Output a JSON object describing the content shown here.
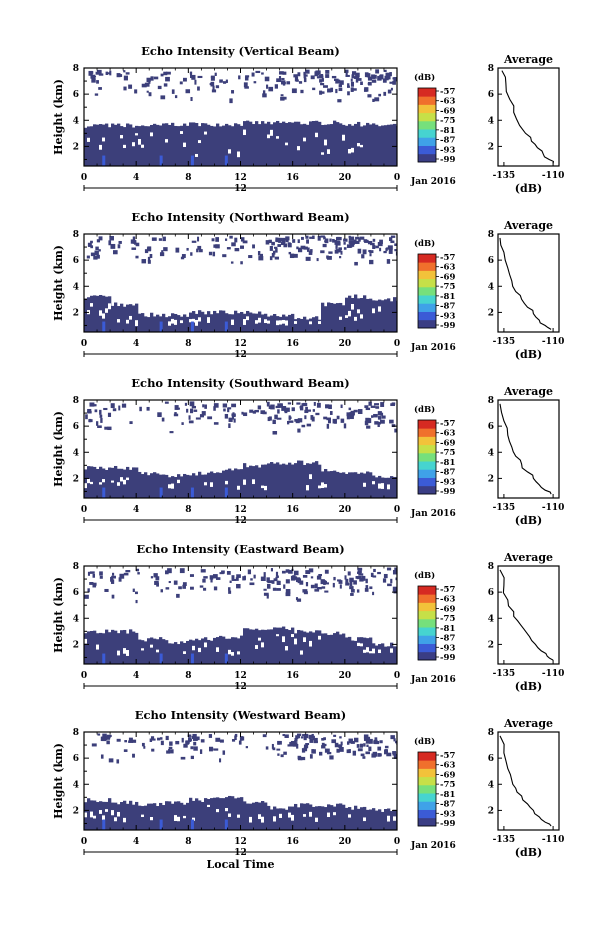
{
  "chart_data": [
    {
      "type": "heatmap",
      "title": "Echo Intensity (Vertical Beam)",
      "ylabel": "Height (km)",
      "y_ticks": [
        "2",
        "4",
        "6",
        "8"
      ],
      "x_ticks": [
        "0",
        "4",
        "8",
        "12",
        "16",
        "20",
        "0"
      ],
      "date_label": "12",
      "month_label": "Jan 2016",
      "ylim": [
        0.5,
        8.0
      ],
      "xlim": [
        0,
        24
      ],
      "lower_echo_top_km": [
        3.6,
        3.6,
        3.6,
        3.7,
        3.7,
        3.7,
        3.8,
        3.8,
        3.8,
        3.8,
        3.7,
        3.6
      ],
      "upper_echo_band_km": [
        5.6,
        7.9
      ],
      "colorbar": {
        "unit_label": "(dB)",
        "ticks": [
          "-57",
          "-63",
          "-69",
          "-75",
          "-81",
          "-87",
          "-93",
          "-99"
        ]
      },
      "average_profile": {
        "title": "Average",
        "xlabel": "(dB)",
        "x_ticks": [
          "-135",
          "-110"
        ],
        "y_ticks": [
          "2",
          "4",
          "6",
          "8"
        ],
        "xlim": [
          -138,
          -107
        ],
        "ylim": [
          0.5,
          8.0
        ],
        "x": [
          -136,
          -134,
          -132,
          -130,
          -127,
          -124,
          -121,
          -118,
          -115,
          -112,
          -110
        ],
        "y": [
          7.8,
          6.8,
          5.6,
          4.6,
          3.6,
          3.0,
          2.4,
          1.9,
          1.4,
          1.0,
          0.7
        ]
      }
    },
    {
      "type": "heatmap",
      "title": "Echo Intensity (Northward Beam)",
      "ylabel": "Height (km)",
      "y_ticks": [
        "2",
        "4",
        "6",
        "8"
      ],
      "x_ticks": [
        "0",
        "4",
        "8",
        "12",
        "16",
        "20",
        "0"
      ],
      "date_label": "12",
      "month_label": "Jan 2016",
      "ylim": [
        0.5,
        8.0
      ],
      "xlim": [
        0,
        24
      ],
      "lower_echo_top_km": [
        3.2,
        2.6,
        1.8,
        1.8,
        2.0,
        2.0,
        2.0,
        1.8,
        1.6,
        2.6,
        3.2,
        3.0
      ],
      "upper_echo_band_km": [
        5.8,
        7.9
      ],
      "colorbar": {
        "unit_label": "(dB)",
        "ticks": [
          "-57",
          "-63",
          "-69",
          "-75",
          "-81",
          "-87",
          "-93",
          "-99"
        ]
      },
      "average_profile": {
        "title": "Average",
        "xlabel": "(dB)",
        "x_ticks": [
          "-135",
          "-110"
        ],
        "y_ticks": [
          "2",
          "4",
          "6",
          "8"
        ],
        "xlim": [
          -138,
          -107
        ],
        "ylim": [
          0.5,
          8.0
        ],
        "x": [
          -137,
          -135,
          -133,
          -131,
          -129,
          -126,
          -123,
          -120,
          -117,
          -114,
          -111
        ],
        "y": [
          7.7,
          6.6,
          5.4,
          4.4,
          3.6,
          3.0,
          2.4,
          1.9,
          1.4,
          1.0,
          0.7
        ]
      }
    },
    {
      "type": "heatmap",
      "title": "Echo Intensity (Southward Beam)",
      "ylabel": "Height (km)",
      "y_ticks": [
        "2",
        "4",
        "6",
        "8"
      ],
      "x_ticks": [
        "0",
        "4",
        "8",
        "12",
        "16",
        "20",
        "0"
      ],
      "date_label": "12",
      "month_label": "Jan 2016",
      "ylim": [
        0.5,
        8.0
      ],
      "xlim": [
        0,
        24
      ],
      "lower_echo_top_km": [
        2.8,
        2.8,
        2.4,
        2.2,
        2.4,
        2.6,
        3.0,
        3.2,
        3.2,
        2.6,
        2.4,
        2.2
      ],
      "upper_echo_band_km": [
        5.6,
        7.9
      ],
      "colorbar": {
        "unit_label": "(dB)",
        "ticks": [
          "-57",
          "-63",
          "-69",
          "-75",
          "-81",
          "-87",
          "-93",
          "-99"
        ]
      },
      "average_profile": {
        "title": "Average",
        "xlabel": "(dB)",
        "x_ticks": [
          "-135",
          "-110"
        ],
        "y_ticks": [
          "2",
          "4",
          "6",
          "8"
        ],
        "xlim": [
          -138,
          -107
        ],
        "ylim": [
          0.5,
          8.0
        ],
        "x": [
          -137,
          -135,
          -133,
          -131,
          -129,
          -126,
          -123,
          -120,
          -117,
          -114,
          -111
        ],
        "y": [
          7.7,
          6.4,
          5.3,
          4.4,
          3.7,
          3.1,
          2.5,
          2.0,
          1.5,
          1.1,
          0.8
        ]
      }
    },
    {
      "type": "heatmap",
      "title": "Echo Intensity (Eastward Beam)",
      "ylabel": "Height (km)",
      "y_ticks": [
        "2",
        "4",
        "6",
        "8"
      ],
      "x_ticks": [
        "0",
        "4",
        "8",
        "12",
        "16",
        "20",
        "0"
      ],
      "date_label": "12",
      "month_label": "Jan 2016",
      "ylim": [
        0.5,
        8.0
      ],
      "xlim": [
        0,
        24
      ],
      "lower_echo_top_km": [
        3.0,
        3.0,
        2.4,
        2.2,
        2.4,
        2.6,
        3.2,
        3.2,
        3.0,
        2.8,
        2.4,
        2.0
      ],
      "upper_echo_band_km": [
        5.4,
        7.9
      ],
      "colorbar": {
        "unit_label": "(dB)",
        "ticks": [
          "-57",
          "-63",
          "-69",
          "-75",
          "-81",
          "-87",
          "-93",
          "-99"
        ]
      },
      "average_profile": {
        "title": "Average",
        "xlabel": "(dB)",
        "x_ticks": [
          "-135",
          "-110"
        ],
        "y_ticks": [
          "2",
          "4",
          "6",
          "8"
        ],
        "xlim": [
          -138,
          -107
        ],
        "ylim": [
          0.5,
          8.0
        ],
        "x": [
          -137,
          -135,
          -133,
          -130,
          -128,
          -125,
          -122,
          -119,
          -116,
          -113,
          -110
        ],
        "y": [
          7.7,
          6.5,
          5.4,
          4.5,
          3.8,
          3.2,
          2.6,
          2.0,
          1.5,
          1.1,
          0.8
        ]
      }
    },
    {
      "type": "heatmap",
      "title": "Echo Intensity (Westward Beam)",
      "ylabel": "Height (km)",
      "y_ticks": [
        "2",
        "4",
        "6",
        "8"
      ],
      "x_ticks": [
        "0",
        "4",
        "8",
        "12",
        "16",
        "20",
        "0"
      ],
      "date_label": "12",
      "month_label": "Jan 2016",
      "xlabel": "Local Time",
      "ylim": [
        0.5,
        8.0
      ],
      "xlim": [
        0,
        24
      ],
      "lower_echo_top_km": [
        2.8,
        2.6,
        2.4,
        2.6,
        2.8,
        3.0,
        2.6,
        2.2,
        2.4,
        2.4,
        2.2,
        2.0
      ],
      "upper_echo_band_km": [
        5.8,
        7.9
      ],
      "colorbar": {
        "unit_label": "(dB)",
        "ticks": [
          "-57",
          "-63",
          "-69",
          "-75",
          "-81",
          "-87",
          "-93",
          "-99"
        ]
      },
      "average_profile": {
        "title": "Average",
        "xlabel": "(dB)",
        "x_ticks": [
          "-135",
          "-110"
        ],
        "y_ticks": [
          "2",
          "4",
          "6",
          "8"
        ],
        "xlim": [
          -138,
          -107
        ],
        "ylim": [
          0.5,
          8.0
        ],
        "x": [
          -137,
          -135,
          -133,
          -131,
          -129,
          -126,
          -123,
          -120,
          -117,
          -114,
          -111
        ],
        "y": [
          7.7,
          6.4,
          5.2,
          4.3,
          3.7,
          3.1,
          2.5,
          2.0,
          1.5,
          1.1,
          0.8
        ]
      }
    }
  ],
  "colors": {
    "echo_fill": "#3c3f7a",
    "colorbar": [
      "#3a3d84",
      "#3b5bd6",
      "#3fa2e8",
      "#46d4d0",
      "#76e07c",
      "#c6e048",
      "#f2c23a",
      "#f0702c",
      "#d62a22"
    ]
  }
}
